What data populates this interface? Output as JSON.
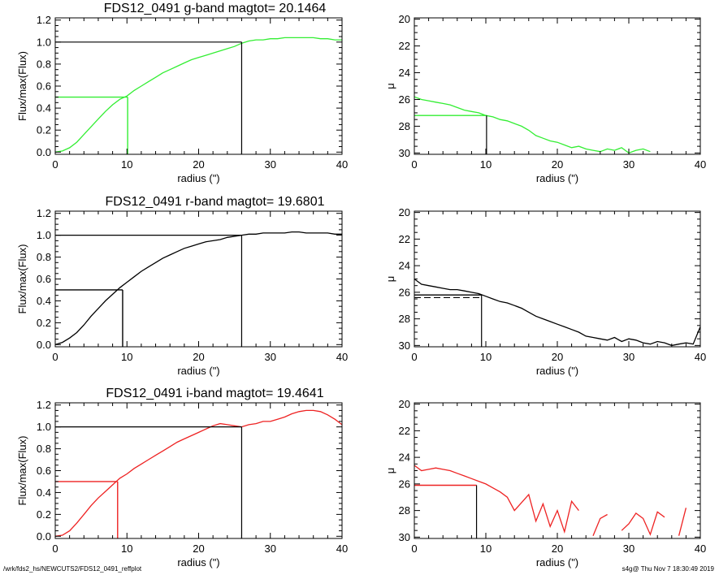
{
  "footer": {
    "path": "/wrk/fds2_hs/NEWCUTS2/FDS12_0491_reffplot",
    "stamp": "s4g@  Thu Nov  7 18:30:49 2019"
  },
  "chart_data": [
    {
      "type": "line",
      "title": "FDS12_0491 g-band  magtot=      20.1464",
      "xlabel": "radius (\")",
      "ylabel": "Flux/max(Flux)",
      "xlim": [
        0,
        40
      ],
      "ylim": [
        -0.02,
        1.22
      ],
      "xticks": [
        0,
        10,
        20,
        30,
        40
      ],
      "yticks": [
        0.0,
        0.2,
        0.4,
        0.6,
        0.8,
        1.0,
        1.2
      ],
      "ytick_labels": [
        "0.0",
        "0.2",
        "0.4",
        "0.6",
        "0.8",
        "1.0",
        "1.2"
      ],
      "color": "#33ee33",
      "x": [
        0,
        1,
        2,
        3,
        4,
        5,
        6,
        7,
        8,
        9,
        10,
        11,
        12,
        13,
        14,
        15,
        16,
        17,
        18,
        19,
        20,
        21,
        22,
        23,
        24,
        25,
        26,
        27,
        28,
        29,
        30,
        31,
        32,
        33,
        34,
        35,
        36,
        37,
        38,
        39,
        40
      ],
      "y": [
        0.0,
        0.01,
        0.04,
        0.09,
        0.16,
        0.23,
        0.3,
        0.37,
        0.43,
        0.48,
        0.51,
        0.56,
        0.6,
        0.64,
        0.68,
        0.72,
        0.75,
        0.78,
        0.81,
        0.84,
        0.86,
        0.88,
        0.9,
        0.92,
        0.94,
        0.96,
        0.99,
        1.01,
        1.02,
        1.02,
        1.03,
        1.03,
        1.04,
        1.04,
        1.04,
        1.04,
        1.04,
        1.03,
        1.03,
        1.02,
        1.02
      ],
      "ref_level": 1.0,
      "ref_x": 26.0,
      "half_level": 0.5,
      "half_x": 10.1,
      "half_line_color": "#33ee33"
    },
    {
      "type": "line",
      "xlabel": "radius (\")",
      "ylabel": "μ",
      "xlim": [
        0,
        40
      ],
      "ylim": [
        30.1,
        19.9
      ],
      "xticks": [
        0,
        10,
        20,
        30,
        40
      ],
      "yticks": [
        20,
        22,
        24,
        26,
        28,
        30
      ],
      "color": "#33ee33",
      "x": [
        0,
        1,
        2,
        3,
        4,
        5,
        6,
        7,
        8,
        9,
        10,
        11,
        12,
        13,
        14,
        15,
        16,
        17,
        18,
        19,
        20,
        21,
        22,
        23,
        24,
        25,
        26,
        27,
        28,
        29,
        30,
        31,
        32,
        33
      ],
      "y": [
        25.8,
        26.0,
        26.1,
        26.2,
        26.3,
        26.4,
        26.6,
        26.8,
        26.9,
        27.0,
        27.2,
        27.3,
        27.5,
        27.6,
        27.8,
        28.0,
        28.3,
        28.7,
        28.9,
        29.1,
        29.2,
        29.4,
        29.6,
        29.5,
        29.7,
        29.8,
        29.9,
        29.7,
        29.8,
        29.6,
        30.0,
        29.8,
        29.7,
        29.9
      ],
      "ref_level": 27.2,
      "ref_x": 10.1,
      "ref_line_color": "#33ee33"
    },
    {
      "type": "line",
      "title": "FDS12_0491 r-band  magtot=      19.6801",
      "xlabel": "radius (\")",
      "ylabel": "Flux/max(Flux)",
      "xlim": [
        0,
        40
      ],
      "ylim": [
        -0.02,
        1.22
      ],
      "xticks": [
        0,
        10,
        20,
        30,
        40
      ],
      "yticks": [
        0.0,
        0.2,
        0.4,
        0.6,
        0.8,
        1.0,
        1.2
      ],
      "ytick_labels": [
        "0.0",
        "0.2",
        "0.4",
        "0.6",
        "0.8",
        "1.0",
        "1.2"
      ],
      "color": "#000000",
      "x": [
        0,
        1,
        2,
        3,
        4,
        5,
        6,
        7,
        8,
        9,
        10,
        11,
        12,
        13,
        14,
        15,
        16,
        17,
        18,
        19,
        20,
        21,
        22,
        23,
        24,
        25,
        26,
        27,
        28,
        29,
        30,
        31,
        32,
        33,
        34,
        35,
        36,
        37,
        38,
        39,
        40
      ],
      "y": [
        0.0,
        0.02,
        0.06,
        0.11,
        0.18,
        0.26,
        0.33,
        0.4,
        0.46,
        0.52,
        0.57,
        0.62,
        0.67,
        0.71,
        0.75,
        0.79,
        0.82,
        0.85,
        0.88,
        0.9,
        0.92,
        0.94,
        0.95,
        0.96,
        0.98,
        0.99,
        1.0,
        1.01,
        1.01,
        1.02,
        1.02,
        1.02,
        1.02,
        1.03,
        1.03,
        1.02,
        1.02,
        1.02,
        1.02,
        1.01,
        1.01
      ],
      "ref_level": 1.0,
      "ref_x": 26.0,
      "half_level": 0.5,
      "half_x": 9.4,
      "half_line_color": "#000000"
    },
    {
      "type": "line",
      "xlabel": "radius (\")",
      "ylabel": "μ",
      "xlim": [
        0,
        40
      ],
      "ylim": [
        30.1,
        19.9
      ],
      "xticks": [
        0,
        10,
        20,
        30,
        40
      ],
      "yticks": [
        20,
        22,
        24,
        26,
        28,
        30
      ],
      "color": "#000000",
      "x": [
        0,
        1,
        2,
        3,
        4,
        5,
        6,
        7,
        8,
        9,
        10,
        11,
        12,
        13,
        14,
        15,
        16,
        17,
        18,
        19,
        20,
        21,
        22,
        23,
        24,
        25,
        26,
        27,
        28,
        29,
        30,
        31,
        32,
        33,
        34,
        35,
        36,
        37,
        38,
        39,
        40
      ],
      "y": [
        25.0,
        25.4,
        25.5,
        25.6,
        25.7,
        25.8,
        25.8,
        25.9,
        26.0,
        26.1,
        26.3,
        26.5,
        26.7,
        26.8,
        27.0,
        27.2,
        27.5,
        27.8,
        28.0,
        28.2,
        28.4,
        28.6,
        28.8,
        29.0,
        29.3,
        29.4,
        29.5,
        29.6,
        29.4,
        29.7,
        29.5,
        29.6,
        29.8,
        29.9,
        29.7,
        29.8,
        30.0,
        29.9,
        29.8,
        29.9,
        28.6
      ],
      "ref_level": 26.2,
      "ref_x": 9.4,
      "dashed_level": 26.4,
      "ref_line_color": "#000000"
    },
    {
      "type": "line",
      "title": "FDS12_0491 i-band  magtot=      19.4641",
      "xlabel": "radius (\")",
      "ylabel": "Flux/max(Flux)",
      "xlim": [
        0,
        40
      ],
      "ylim": [
        -0.02,
        1.22
      ],
      "xticks": [
        0,
        10,
        20,
        30,
        40
      ],
      "yticks": [
        0.0,
        0.2,
        0.4,
        0.6,
        0.8,
        1.0,
        1.2
      ],
      "ytick_labels": [
        "0.0",
        "0.2",
        "0.4",
        "0.6",
        "0.8",
        "1.0",
        "1.2"
      ],
      "color": "#ee2222",
      "x": [
        0,
        1,
        2,
        3,
        4,
        5,
        6,
        7,
        8,
        9,
        10,
        11,
        12,
        13,
        14,
        15,
        16,
        17,
        18,
        19,
        20,
        21,
        22,
        23,
        24,
        25,
        26,
        27,
        28,
        29,
        30,
        31,
        32,
        33,
        34,
        35,
        36,
        37,
        38,
        39,
        40
      ],
      "y": [
        0.0,
        0.01,
        0.05,
        0.12,
        0.2,
        0.28,
        0.35,
        0.41,
        0.47,
        0.53,
        0.57,
        0.62,
        0.66,
        0.7,
        0.74,
        0.78,
        0.82,
        0.86,
        0.89,
        0.92,
        0.95,
        0.98,
        1.01,
        1.03,
        1.02,
        1.01,
        1.0,
        1.02,
        1.03,
        1.05,
        1.05,
        1.07,
        1.09,
        1.12,
        1.14,
        1.15,
        1.15,
        1.14,
        1.11,
        1.07,
        1.02
      ],
      "ref_level": 1.0,
      "ref_x": 26.0,
      "half_level": 0.5,
      "half_x": 8.7,
      "half_line_color": "#ee2222"
    },
    {
      "type": "line",
      "xlabel": "radius (\")",
      "ylabel": "μ",
      "xlim": [
        0,
        40
      ],
      "ylim": [
        30.1,
        19.9
      ],
      "xticks": [
        0,
        10,
        20,
        30,
        40
      ],
      "yticks": [
        20,
        22,
        24,
        26,
        28,
        30
      ],
      "color": "#ee2222",
      "x": [
        0,
        1,
        2,
        3,
        4,
        5,
        6,
        7,
        8,
        9,
        10,
        11,
        12,
        13,
        14,
        15,
        16,
        17,
        18,
        19,
        20,
        21,
        22,
        23,
        24,
        25,
        26,
        27,
        28,
        29,
        30,
        31,
        32,
        33,
        34,
        35,
        36,
        37,
        38
      ],
      "y": [
        24.6,
        25.0,
        24.9,
        24.8,
        24.9,
        25.0,
        25.2,
        25.4,
        25.6,
        25.8,
        26.0,
        26.3,
        26.6,
        27.0,
        28.0,
        27.4,
        26.8,
        28.8,
        27.5,
        29.2,
        28.0,
        29.6,
        27.3,
        28.0,
        null,
        29.9,
        28.6,
        28.3,
        null,
        29.5,
        29.0,
        28.2,
        28.6,
        29.8,
        28.1,
        28.5,
        null,
        29.9,
        27.8
      ],
      "ref_level": 26.1,
      "ref_x": 8.7,
      "ref_line_color": "#ee2222"
    }
  ]
}
